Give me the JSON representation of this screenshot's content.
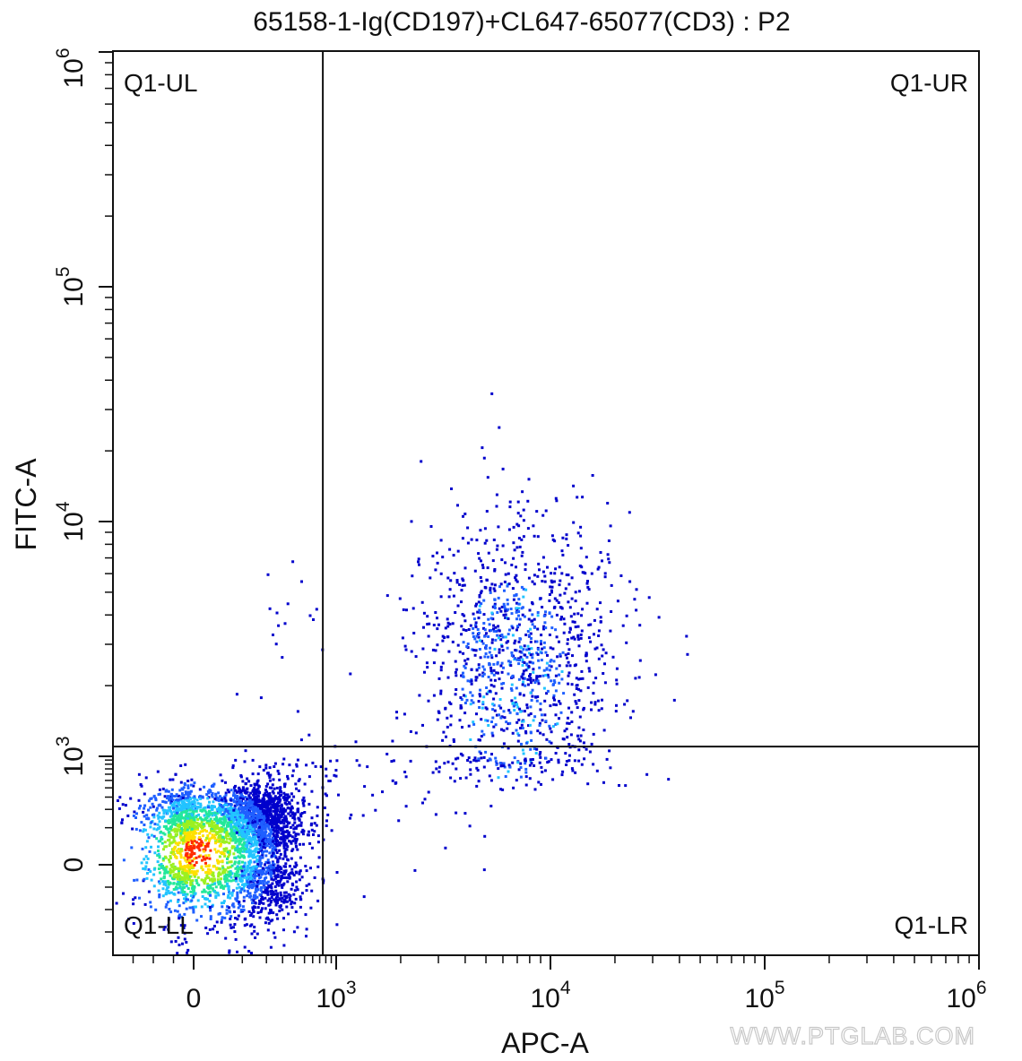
{
  "chart_data": {
    "type": "scatter",
    "title": "65158-1-Ig(CD197)+CL647-65077(CD3) : P2",
    "xlabel": "APC-A",
    "ylabel": "FITC-A",
    "x_scale": "biexponential",
    "y_scale": "biexponential",
    "x_ticks": [
      {
        "value": 0,
        "label": "0",
        "sup": ""
      },
      {
        "value": 1000,
        "label": "10",
        "sup": "3"
      },
      {
        "value": 10000,
        "label": "10",
        "sup": "4"
      },
      {
        "value": 100000,
        "label": "10",
        "sup": "5"
      },
      {
        "value": 1000000,
        "label": "10",
        "sup": "6"
      }
    ],
    "y_ticks": [
      {
        "value": 0,
        "label": "0",
        "sup": ""
      },
      {
        "value": 1000,
        "label": "10",
        "sup": "3"
      },
      {
        "value": 10000,
        "label": "10",
        "sup": "4"
      },
      {
        "value": 100000,
        "label": "10",
        "sup": "5"
      },
      {
        "value": 1000000,
        "label": "10",
        "sup": "6"
      }
    ],
    "xlim": [
      -400,
      1000000
    ],
    "ylim": [
      -400,
      1000000
    ],
    "quadrant_gate": {
      "x": 750,
      "y": 1100
    },
    "quadrants": [
      "Q1-UL",
      "Q1-UR",
      "Q1-LL",
      "Q1-LR"
    ],
    "populations": [
      {
        "name": "",
        "center": [
          80,
          80
        ],
        "spread": [
          130,
          130
        ],
        "count": 3600,
        "density": "high"
      },
      {
        "name": "",
        "center": [
          7000,
          2600
        ],
        "spread": [
          0.22,
          0.3
        ],
        "count": 1200,
        "density": "medium"
      }
    ],
    "density_colors": [
      "#0000cc",
      "#1f5fff",
      "#22c4ff",
      "#22e89a",
      "#9cf020",
      "#ffe000",
      "#ff2a00"
    ],
    "watermark": "WWW.PTGLAB.COM"
  }
}
